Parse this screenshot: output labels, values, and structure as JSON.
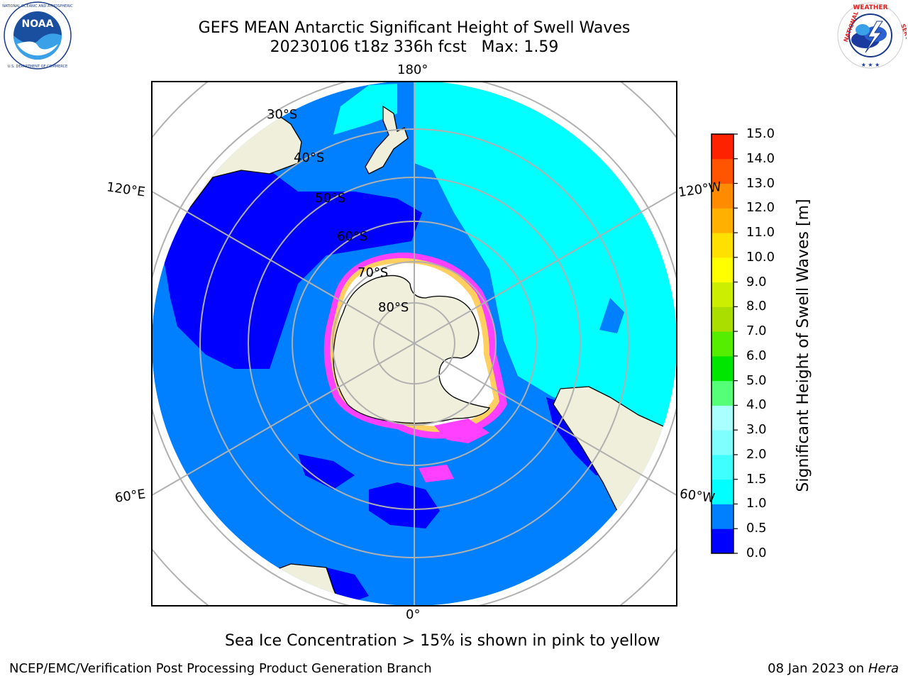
{
  "title": {
    "line1": "GEFS MEAN Antarctic Significant Height of Swell Waves",
    "line2": "20230106 t18z 336h fcst   Max: 1.59"
  },
  "logos": {
    "noaa": {
      "text": "NOAA",
      "ring_text": "NATIONAL OCEANIC AND ATMOSPHERIC ADMINISTRATION · U.S. DEPARTMENT OF COMMERCE",
      "icon": "noaa-logo-icon"
    },
    "nws": {
      "ring_text": "NATIONAL WEATHER SERVICE",
      "icon": "nws-logo-icon"
    }
  },
  "map": {
    "projection": "south-polar-stereographic",
    "longitude_labels": {
      "top": "180°",
      "bottom": "0°",
      "upper_left": "120°E",
      "upper_right": "120°W",
      "lower_left": "60°E",
      "lower_right": "60°W"
    },
    "latitude_labels": [
      "30°S",
      "40°S",
      "50°S",
      "60°S",
      "70°S",
      "80°S"
    ],
    "colors": {
      "land": "#efefdb",
      "ice_white": "#ffffff",
      "ice_edge_pink": "#ff40ff",
      "ice_edge_yellow": "#ffd060",
      "grid": "#b0b0b0"
    }
  },
  "colorbar": {
    "title": "Significant Height of Swell Waves [m]",
    "ticks": [
      "0.0",
      "0.5",
      "1.0",
      "1.5",
      "2.0",
      "3.0",
      "4.0",
      "5.0",
      "6.0",
      "7.0",
      "8.0",
      "9.0",
      "10.0",
      "11.0",
      "12.0",
      "13.0",
      "14.0",
      "15.0"
    ],
    "colors": [
      "#0000ff",
      "#0080ff",
      "#00ffff",
      "#40ffff",
      "#80ffff",
      "#aaffff",
      "#55ff77",
      "#00e600",
      "#55ee00",
      "#aadd00",
      "#ccee00",
      "#ffff00",
      "#ffe000",
      "#ffb000",
      "#ff8c00",
      "#ff5500",
      "#ff2200",
      "#ff0000"
    ]
  },
  "footer": {
    "note": "Sea Ice Concentration > 15% is shown in pink to yellow",
    "left": "NCEP/EMC/Verification Post Processing Product Generation Branch",
    "right_prefix": "08 Jan 2023 on ",
    "right_italic": "Hera"
  }
}
